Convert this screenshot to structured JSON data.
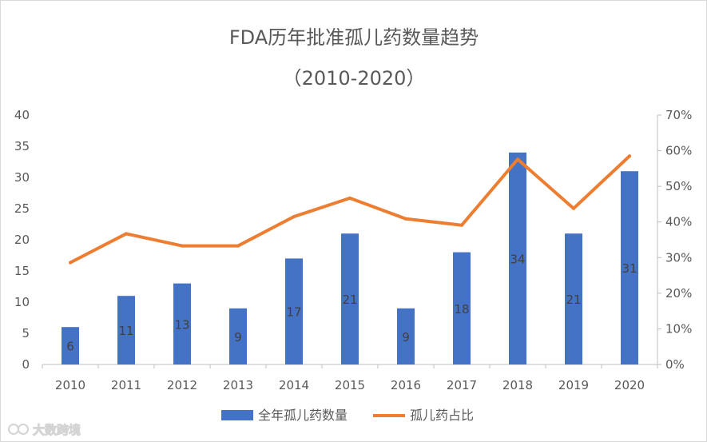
{
  "chart_data": {
    "type": "bar+line",
    "title": "FDA历年批准孤儿药数量趋势",
    "subtitle": "（2010-2020）",
    "categories": [
      "2010",
      "2011",
      "2012",
      "2013",
      "2014",
      "2015",
      "2016",
      "2017",
      "2018",
      "2019",
      "2020"
    ],
    "series": [
      {
        "name": "全年孤儿药数量",
        "type": "bar",
        "axis": "left",
        "color": "#4472C4",
        "values": [
          6,
          11,
          13,
          9,
          17,
          21,
          9,
          18,
          34,
          21,
          31
        ]
      },
      {
        "name": "孤儿药占比",
        "type": "line",
        "axis": "right",
        "color": "#ED7D31",
        "values": [
          28.6,
          36.7,
          33.3,
          33.3,
          41.5,
          46.7,
          40.9,
          39.1,
          57.6,
          43.8,
          58.5
        ]
      }
    ],
    "y_left": {
      "min": 0,
      "max": 40,
      "ticks": [
        "0",
        "5",
        "10",
        "15",
        "20",
        "25",
        "30",
        "35",
        "40"
      ]
    },
    "y_right": {
      "min": 0,
      "max": 70,
      "ticks": [
        "0%",
        "10%",
        "20%",
        "30%",
        "40%",
        "50%",
        "60%",
        "70%"
      ]
    },
    "legend_position": "bottom",
    "grid": false,
    "colors": {
      "bar": "#4472C4",
      "line": "#ED7D31",
      "axis": "#bfbfbf",
      "text": "#595959"
    }
  },
  "watermark": {
    "icon": "cc-logo-icon",
    "text": "大数跨境"
  }
}
